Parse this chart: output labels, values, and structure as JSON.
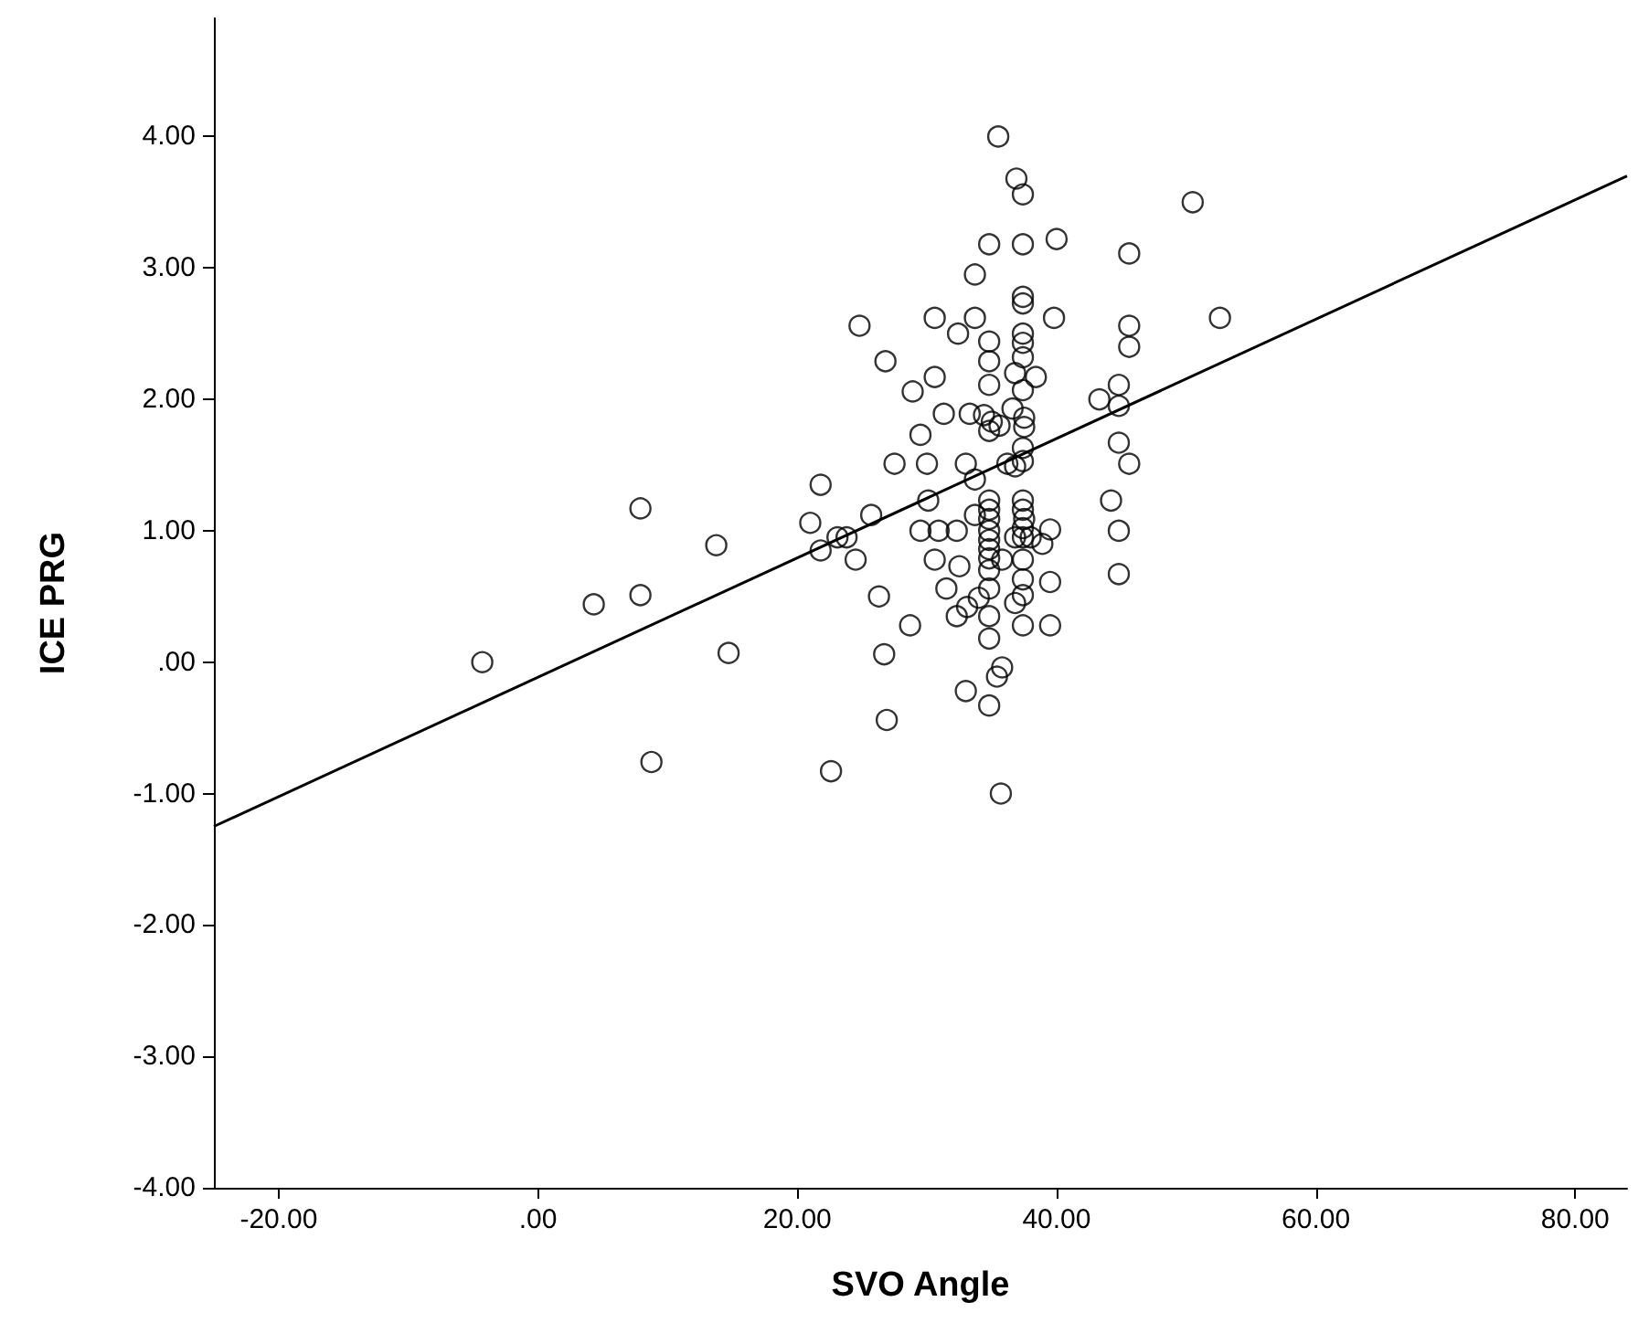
{
  "chart_data": {
    "type": "scatter",
    "xlabel": "SVO Angle",
    "ylabel": "ICE PRG",
    "xlim": [
      -25,
      84
    ],
    "ylim": [
      -4,
      4.9
    ],
    "xticks": [
      {
        "value": -20,
        "label": "-20.00"
      },
      {
        "value": 0,
        "label": ".00"
      },
      {
        "value": 20,
        "label": "20.00"
      },
      {
        "value": 40,
        "label": "40.00"
      },
      {
        "value": 60,
        "label": "60.00"
      },
      {
        "value": 80,
        "label": "80.00"
      }
    ],
    "yticks": [
      {
        "value": -4,
        "label": "-4.00"
      },
      {
        "value": -3,
        "label": "-3.00"
      },
      {
        "value": -2,
        "label": "-2.00"
      },
      {
        "value": -1,
        "label": "-1.00"
      },
      {
        "value": 0,
        "label": ".00"
      },
      {
        "value": 1,
        "label": "1.00"
      },
      {
        "value": 2,
        "label": "2.00"
      },
      {
        "value": 3,
        "label": "3.00"
      },
      {
        "value": 4,
        "label": "4.00"
      }
    ],
    "grid": false,
    "marker": "circle",
    "series": [
      {
        "color": "#000000",
        "x": [
          -4.3,
          4.3,
          7.9,
          7.9,
          8.75,
          13.75,
          14.7,
          21,
          21.8,
          21.8,
          22.6,
          35.5,
          36.9,
          37.4,
          50.5,
          34.8,
          37.4,
          40.0,
          45.6,
          33.7,
          37.4,
          37.4,
          24.8,
          30.6,
          33.7,
          32.4,
          39.8,
          45.6,
          45.6,
          52.6,
          37.4,
          37.4,
          34.8,
          26.8,
          34.8,
          37.4,
          30.6,
          28.9,
          34.8,
          36.8,
          38.4,
          37.4,
          43.3,
          44.8,
          44.8,
          31.3,
          33.3,
          34.4,
          35.0,
          34.8,
          35.6,
          36.6,
          37.5,
          37.5,
          29.5,
          44.8,
          37.4,
          37.4,
          36.8,
          36.2,
          45.6,
          27.5,
          30.0,
          33.0,
          33.7,
          30.1,
          44.2,
          34.8,
          34.8,
          37.4,
          37.4,
          37.5,
          25.7,
          33.7,
          34.8,
          34.8,
          34.8,
          34.8,
          34.8,
          37.4,
          37.4,
          36.8,
          38.0,
          39.5,
          38.9,
          44.8,
          23.1,
          23.8,
          24.5,
          29.5,
          30.9,
          32.3,
          30.6,
          32.5,
          35.8,
          37.4,
          34.8,
          37.4,
          39.5,
          44.8,
          26.3,
          31.5,
          34.8,
          34.0,
          33.1,
          32.3,
          37.4,
          36.8,
          34.8,
          37.4,
          39.5,
          28.7,
          34.8,
          26.7,
          35.8,
          35.4,
          33.0,
          34.8,
          26.9,
          35.7
        ],
        "values": [
          0.0,
          0.44,
          0.51,
          1.17,
          -0.76,
          0.89,
          0.07,
          1.06,
          1.35,
          0.85,
          -0.83,
          4.0,
          3.68,
          3.56,
          3.5,
          3.18,
          3.18,
          3.22,
          3.11,
          2.95,
          2.78,
          2.73,
          2.56,
          2.62,
          2.62,
          2.5,
          2.62,
          2.56,
          2.4,
          2.62,
          2.5,
          2.43,
          2.44,
          2.29,
          2.29,
          2.32,
          2.17,
          2.06,
          2.11,
          2.2,
          2.17,
          2.07,
          2.0,
          2.11,
          1.95,
          1.89,
          1.89,
          1.88,
          1.83,
          1.76,
          1.8,
          1.93,
          1.86,
          1.79,
          1.73,
          1.67,
          1.63,
          1.53,
          1.49,
          1.51,
          1.51,
          1.51,
          1.51,
          1.51,
          1.39,
          1.23,
          1.23,
          1.23,
          1.16,
          1.23,
          1.16,
          1.09,
          1.12,
          1.12,
          1.09,
          1.0,
          0.93,
          0.86,
          0.79,
          1.02,
          0.95,
          0.95,
          0.95,
          1.01,
          0.9,
          1.0,
          0.95,
          0.95,
          0.78,
          1.0,
          1.0,
          1.0,
          0.78,
          0.73,
          0.78,
          0.78,
          0.7,
          0.63,
          0.61,
          0.67,
          0.5,
          0.56,
          0.56,
          0.49,
          0.42,
          0.35,
          0.51,
          0.45,
          0.35,
          0.28,
          0.28,
          0.28,
          0.18,
          0.06,
          -0.04,
          -0.11,
          -0.22,
          -0.33,
          -0.44,
          -1.0
        ]
      },
      {
        "type": "line",
        "marker": "none",
        "color": "#000000",
        "x": [
          -25,
          84
        ],
        "values": [
          -1.25,
          3.7
        ]
      }
    ]
  }
}
